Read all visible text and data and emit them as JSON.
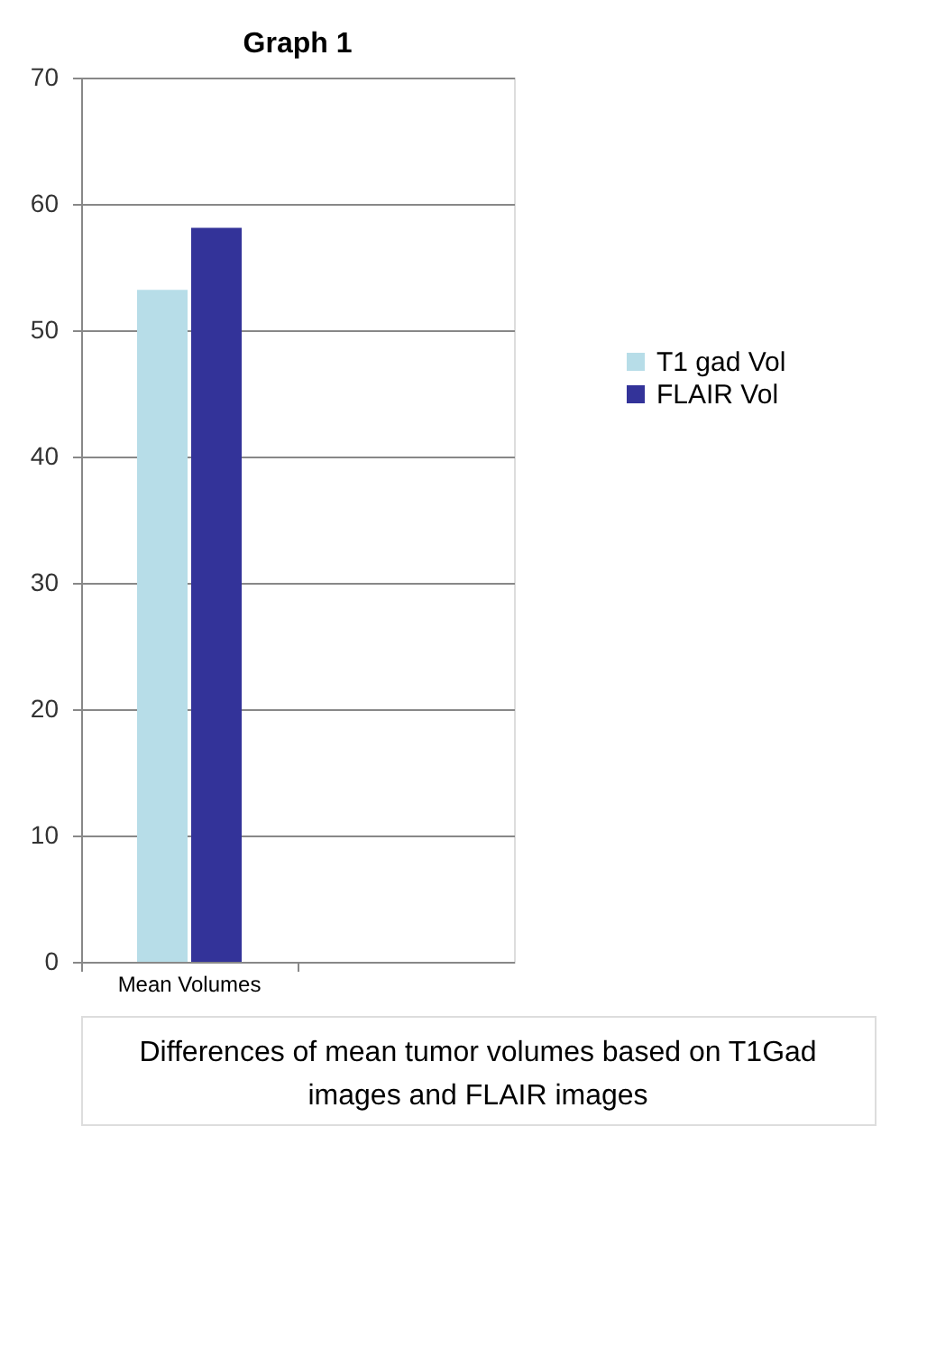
{
  "chart_data": {
    "type": "bar",
    "title": "Graph 1",
    "categories": [
      "Mean Volumes",
      null
    ],
    "series": [
      {
        "name": "T1 gad Vol",
        "color": "#b7dde8",
        "values": [
          53.2,
          null
        ]
      },
      {
        "name": "FLAIR Vol",
        "color": "#333399",
        "values": [
          58.1,
          null
        ]
      }
    ],
    "ylim": [
      0,
      70
    ],
    "yticks": [
      0,
      10,
      20,
      30,
      40,
      50,
      60,
      70
    ],
    "grid": "y",
    "legend": "right",
    "annotations": [
      "Differences of mean tumor volumes based on T1Gad images and FLAIR images"
    ]
  }
}
